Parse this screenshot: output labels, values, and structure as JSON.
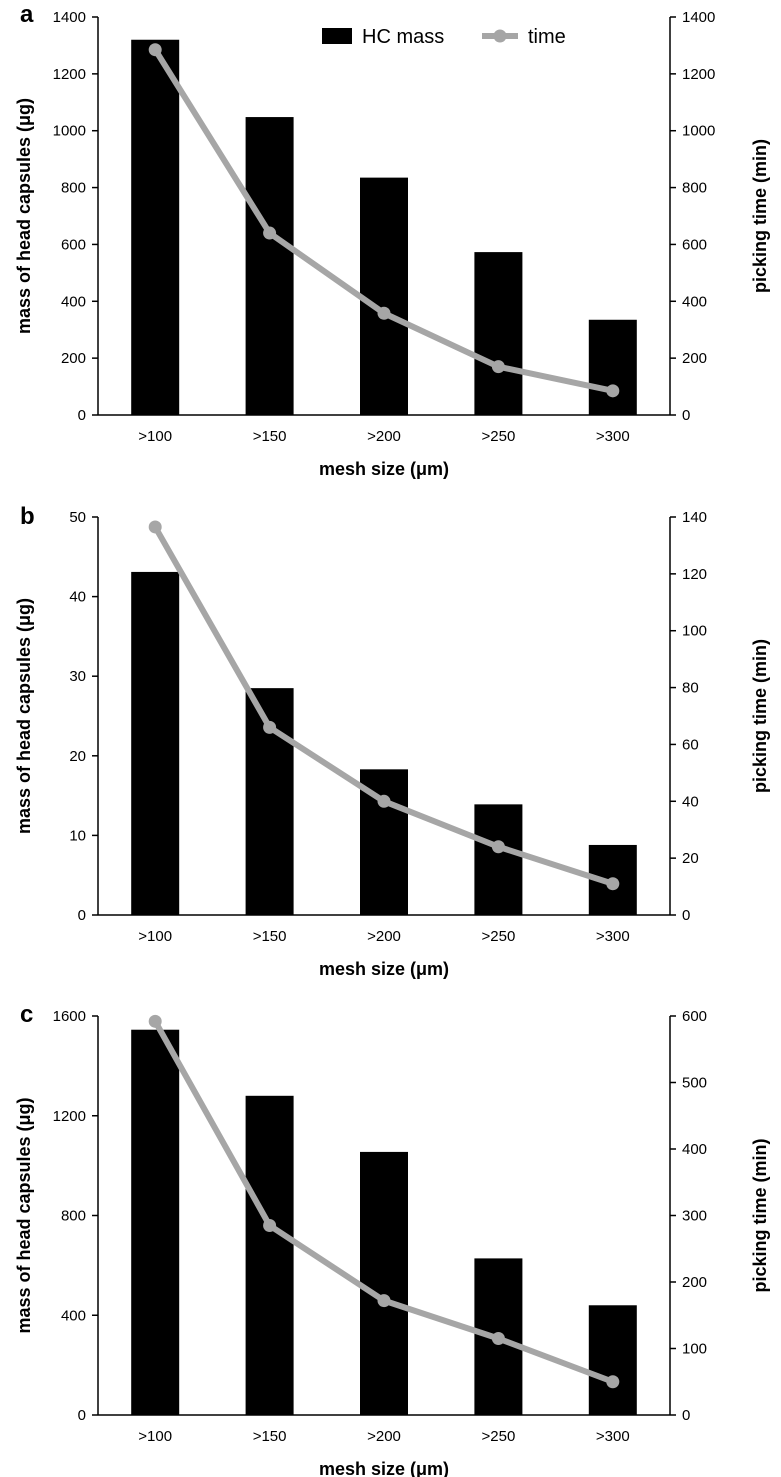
{
  "legend": {
    "bar_label": "HC mass",
    "line_label": "time",
    "position": "top-center",
    "bar_color": "#000000",
    "line_color": "#a6a6a6"
  },
  "chart_data": [
    {
      "type": "bar",
      "panel": "a",
      "categories": [
        ">100",
        ">150",
        ">200",
        ">250",
        ">300"
      ],
      "xlabel": "mesh size (μm)",
      "ylabel": "mass of head capsules (μg)",
      "y2label": "picking time (min)",
      "ylim": [
        0,
        1400
      ],
      "yticks": [
        0,
        200,
        400,
        600,
        800,
        1000,
        1200,
        1400
      ],
      "y2lim": [
        0,
        1400
      ],
      "y2ticks": [
        0,
        200,
        400,
        600,
        800,
        1000,
        1200,
        1400
      ],
      "grid": false,
      "series": [
        {
          "name": "HC mass",
          "type": "bar",
          "axis": "left",
          "values": [
            1320,
            1048,
            835,
            573,
            335
          ]
        },
        {
          "name": "time",
          "type": "line",
          "axis": "right",
          "values": [
            1285,
            640,
            358,
            170,
            85
          ]
        }
      ]
    },
    {
      "type": "bar",
      "panel": "b",
      "categories": [
        ">100",
        ">150",
        ">200",
        ">250",
        ">300"
      ],
      "xlabel": "mesh size (μm)",
      "ylabel": "mass of head capsules (μg)",
      "y2label": "picking time (min)",
      "ylim": [
        0,
        50
      ],
      "yticks": [
        0,
        10,
        20,
        30,
        40,
        50
      ],
      "y2lim": [
        0,
        140
      ],
      "y2ticks": [
        0,
        20,
        40,
        60,
        80,
        100,
        120,
        140
      ],
      "grid": false,
      "series": [
        {
          "name": "HC mass",
          "type": "bar",
          "axis": "left",
          "values": [
            43.1,
            28.5,
            18.3,
            13.9,
            8.8
          ]
        },
        {
          "name": "time",
          "type": "line",
          "axis": "right",
          "values": [
            136.5,
            66,
            40,
            24,
            11
          ]
        }
      ]
    },
    {
      "type": "bar",
      "panel": "c",
      "categories": [
        ">100",
        ">150",
        ">200",
        ">250",
        ">300"
      ],
      "xlabel": "mesh size (μm)",
      "ylabel": "mass of head capsules (μg)",
      "y2label": "picking time (min)",
      "ylim": [
        0,
        1600
      ],
      "yticks": [
        0,
        400,
        800,
        1200,
        1600
      ],
      "y2lim": [
        0,
        600
      ],
      "y2ticks": [
        0,
        100,
        200,
        300,
        400,
        500,
        600
      ],
      "grid": false,
      "series": [
        {
          "name": "HC mass",
          "type": "bar",
          "axis": "left",
          "values": [
            1545,
            1280,
            1055,
            628,
            440
          ]
        },
        {
          "name": "time",
          "type": "line",
          "axis": "right",
          "values": [
            592,
            285,
            172,
            115,
            50
          ]
        }
      ]
    }
  ]
}
